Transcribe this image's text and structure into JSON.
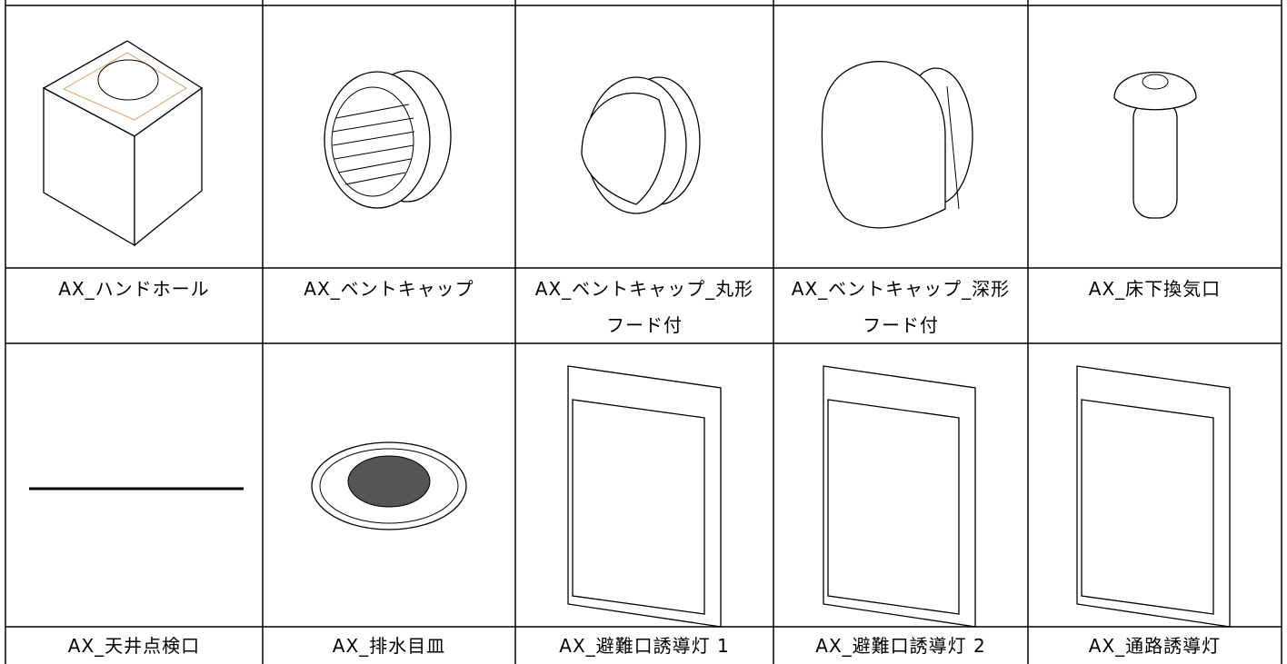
{
  "table": {
    "rows": [
      [
        "AX_ハンドホール",
        "AX_ベントキャップ",
        "AX_ベントキャップ_丸形フード付",
        "AX_ベントキャップ_深形フード付",
        "AX_床下換気口"
      ],
      [
        "AX_天井点検口",
        "AX_排水目皿",
        "AX_避難口誘導灯 1",
        "AX_避難口誘導灯 2",
        "AX_通路誘導灯"
      ]
    ]
  }
}
